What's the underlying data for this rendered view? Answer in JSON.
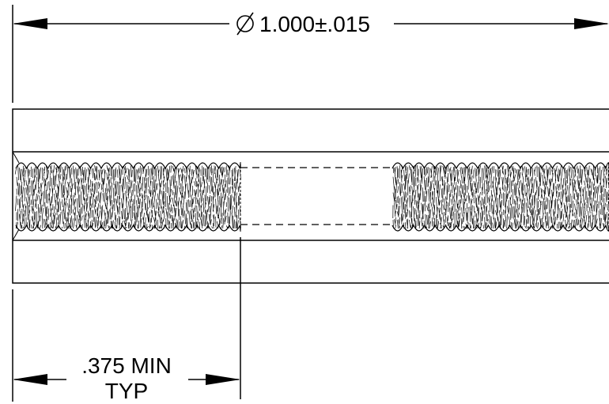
{
  "drawing": {
    "diameter_symbol": "∅",
    "diameter_dimension": "1.000±.015",
    "thread_length_dimension": ".375 MIN",
    "thread_length_note": "TYP"
  },
  "colors": {
    "line": "#000000",
    "background": "#ffffff"
  }
}
